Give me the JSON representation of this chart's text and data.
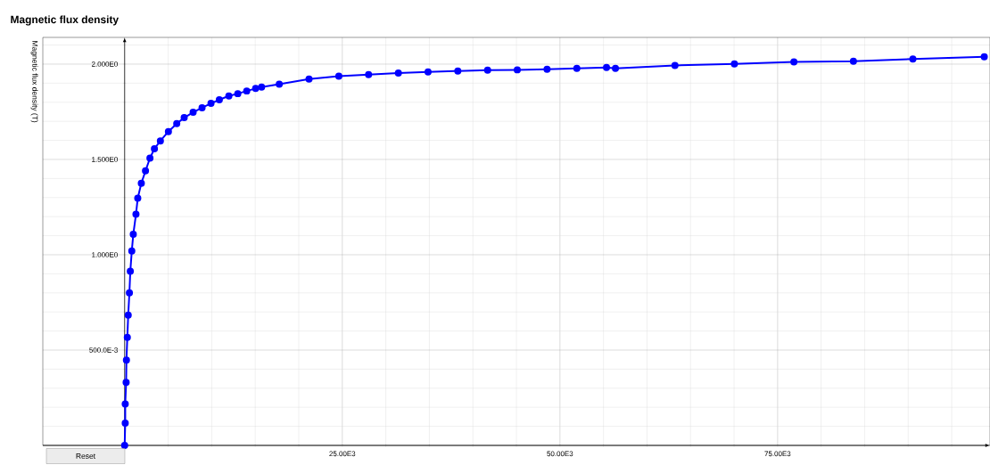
{
  "chart_data": {
    "type": "line",
    "title": "Magnetic flux density",
    "ylabel": "Magnetic flux density (T)",
    "annotations": [
      "Reset"
    ],
    "x": [
      0,
      68,
      68,
      171,
      205,
      308,
      410,
      547,
      650,
      821,
      992,
      1300,
      1505,
      1915,
      2394,
      2907,
      3420,
      4104,
      5027,
      5985,
      6840,
      7866,
      8892,
      9918,
      10876,
      11970,
      12996,
      14022,
      15048,
      15732,
      17760,
      21180,
      24600,
      28020,
      31440,
      34850,
      38270,
      41690,
      45100,
      48520,
      51940,
      55350,
      56375,
      63210,
      70040,
      76875,
      83710,
      90540,
      98740
    ],
    "series": [
      {
        "color": "#0000ff",
        "values": [
          0,
          0.117,
          0.217,
          0.331,
          0.447,
          0.567,
          0.683,
          0.8,
          0.913,
          1.02,
          1.107,
          1.212,
          1.297,
          1.375,
          1.44,
          1.507,
          1.556,
          1.597,
          1.646,
          1.688,
          1.719,
          1.747,
          1.771,
          1.794,
          1.813,
          1.833,
          1.845,
          1.859,
          1.872,
          1.879,
          1.895,
          1.922,
          1.937,
          1.945,
          1.953,
          1.959,
          1.964,
          1.968,
          1.97,
          1.973,
          1.978,
          1.982,
          1.978,
          1.993,
          2.001,
          2.012,
          2.015,
          2.027,
          2.038
        ]
      }
    ],
    "xlim": [
      -9400,
      99400
    ],
    "ylim": [
      0,
      2.14
    ],
    "xticks": [
      {
        "value": 5000,
        "label": null
      },
      {
        "value": 10000,
        "label": null
      },
      {
        "value": 15000,
        "label": null
      },
      {
        "value": 20000,
        "label": null
      },
      {
        "value": 25000,
        "label": "25.00E3"
      },
      {
        "value": 30000,
        "label": null
      },
      {
        "value": 35000,
        "label": null
      },
      {
        "value": 40000,
        "label": null
      },
      {
        "value": 45000,
        "label": null
      },
      {
        "value": 50000,
        "label": "50.00E3"
      },
      {
        "value": 55000,
        "label": null
      },
      {
        "value": 60000,
        "label": null
      },
      {
        "value": 65000,
        "label": null
      },
      {
        "value": 70000,
        "label": null
      },
      {
        "value": 75000,
        "label": "75.00E3"
      },
      {
        "value": 80000,
        "label": null
      },
      {
        "value": 85000,
        "label": null
      },
      {
        "value": 90000,
        "label": null
      },
      {
        "value": 95000,
        "label": null
      }
    ],
    "yticks": [
      {
        "value": 0.1,
        "label": null
      },
      {
        "value": 0.2,
        "label": null
      },
      {
        "value": 0.3,
        "label": null
      },
      {
        "value": 0.4,
        "label": null
      },
      {
        "value": 0.5,
        "label": "500.0E-3"
      },
      {
        "value": 0.6,
        "label": null
      },
      {
        "value": 0.7,
        "label": null
      },
      {
        "value": 0.8,
        "label": null
      },
      {
        "value": 0.9,
        "label": null
      },
      {
        "value": 1.0,
        "label": "1.000E0"
      },
      {
        "value": 1.1,
        "label": null
      },
      {
        "value": 1.2,
        "label": null
      },
      {
        "value": 1.3,
        "label": null
      },
      {
        "value": 1.4,
        "label": null
      },
      {
        "value": 1.5,
        "label": "1.500E0"
      },
      {
        "value": 1.6,
        "label": null
      },
      {
        "value": 1.7,
        "label": null
      },
      {
        "value": 1.8,
        "label": null
      },
      {
        "value": 1.9,
        "label": null
      },
      {
        "value": 2.0,
        "label": "2.000E0"
      },
      {
        "value": 2.1,
        "label": null
      }
    ],
    "grid": true,
    "marker": "circle",
    "line_style": "solid"
  }
}
